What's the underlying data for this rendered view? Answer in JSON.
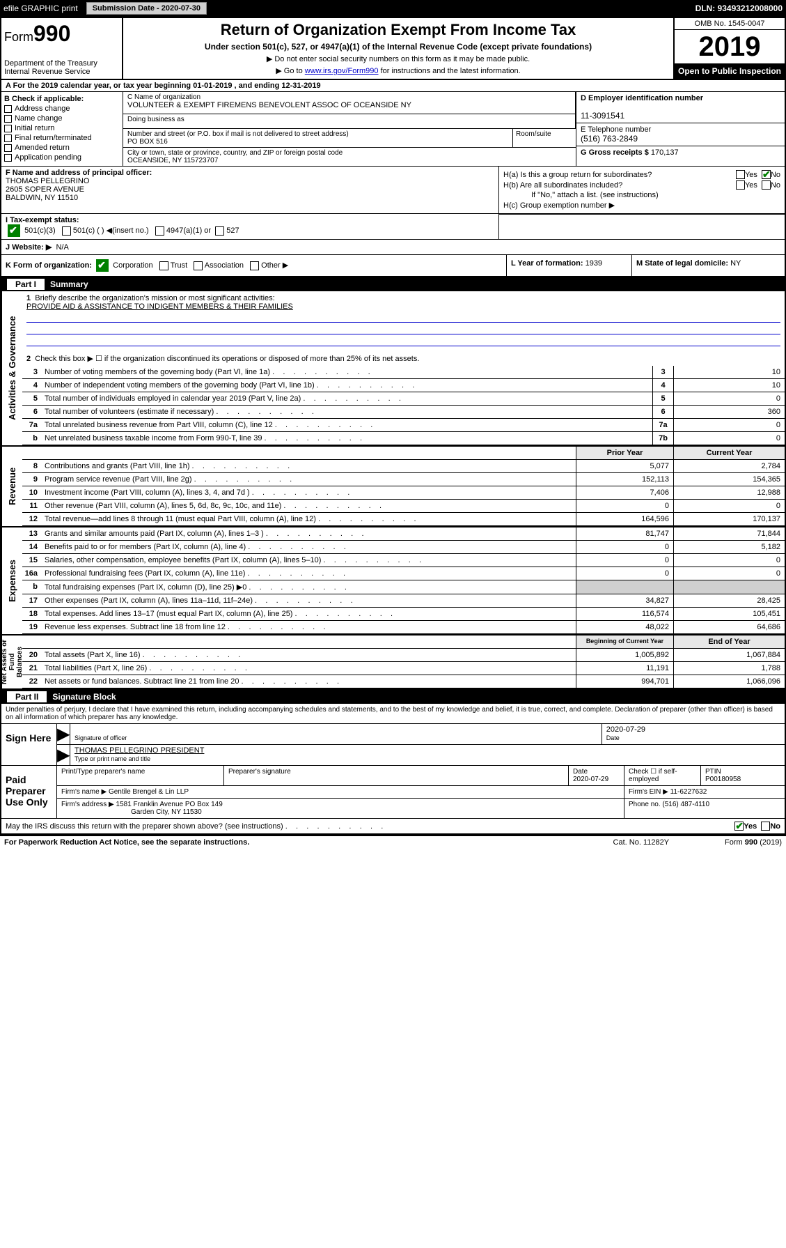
{
  "topbar": {
    "efile": "efile GRAPHIC print",
    "subdate_lbl": "Submission Date - 2020-07-30",
    "dln": "DLN: 93493212008000"
  },
  "header": {
    "form_label": "Form",
    "form_num": "990",
    "dept": "Department of the Treasury",
    "irs": "Internal Revenue Service",
    "title": "Return of Organization Exempt From Income Tax",
    "sub1": "Under section 501(c), 527, or 4947(a)(1) of the Internal Revenue Code (except private foundations)",
    "sub2": "▶ Do not enter social security numbers on this form as it may be made public.",
    "sub3a": "▶ Go to ",
    "sub3_link": "www.irs.gov/Form990",
    "sub3b": " for instructions and the latest information.",
    "omb": "OMB No. 1545-0047",
    "year": "2019",
    "open": "Open to Public Inspection"
  },
  "rowA": "A For the 2019 calendar year, or tax year beginning 01-01-2019    , and ending 12-31-2019",
  "blockB": {
    "hdr": "B Check if applicable:",
    "items": [
      "Address change",
      "Name change",
      "Initial return",
      "Final return/terminated",
      "Amended return",
      "Application pending"
    ]
  },
  "blockC": {
    "name_lbl": "C Name of organization",
    "name": "VOLUNTEER & EXEMPT FIREMENS BENEVOLENT ASSOC OF OCEANSIDE NY",
    "dba_lbl": "Doing business as",
    "addr_lbl": "Number and street (or P.O. box if mail is not delivered to street address)",
    "addr": "PO BOX 516",
    "suite_lbl": "Room/suite",
    "city_lbl": "City or town, state or province, country, and ZIP or foreign postal code",
    "city": "OCEANSIDE, NY  115723707"
  },
  "blockD": {
    "lbl": "D Employer identification number",
    "val": "11-3091541"
  },
  "blockE": {
    "lbl": "E Telephone number",
    "val": "(516) 763-2849"
  },
  "blockG": {
    "lbl": "G Gross receipts $",
    "val": "170,137"
  },
  "blockF": {
    "lbl": "F  Name and address of principal officer:",
    "name": "THOMAS PELLEGRINO",
    "addr1": "2605 SOPER AVENUE",
    "addr2": "BALDWIN, NY  11510"
  },
  "blockH": {
    "a": "H(a)  Is this a group return for subordinates?",
    "b": "H(b)  Are all subordinates included?",
    "b2": "If \"No,\" attach a list. (see instructions)",
    "c": "H(c)  Group exemption number ▶"
  },
  "rowI": {
    "lbl": "I   Tax-exempt status:",
    "opt1": "501(c)(3)",
    "opt2": "501(c) (  ) ◀(insert no.)",
    "opt3": "4947(a)(1) or",
    "opt4": "527"
  },
  "rowJ": {
    "lbl": "J   Website: ▶",
    "val": "N/A"
  },
  "rowK": {
    "lbl": "K Form of organization:",
    "opts": [
      "Corporation",
      "Trust",
      "Association",
      "Other ▶"
    ],
    "L_lbl": "L Year of formation:",
    "L_val": "1939",
    "M_lbl": "M State of legal domicile:",
    "M_val": "NY"
  },
  "part1": {
    "hdr": "Part I",
    "title": "Summary",
    "q1": "Briefly describe the organization's mission or most significant activities:",
    "q1_ans": "PROVIDE AID & ASSISTANCE TO INDIGENT MEMBERS & THEIR FAMILIES",
    "q2": "Check this box ▶ ☐  if the organization discontinued its operations or disposed of more than 25% of its net assets.",
    "lines_gov": [
      {
        "n": "3",
        "d": "Number of voting members of the governing body (Part VI, line 1a)",
        "box": "3",
        "v": "10"
      },
      {
        "n": "4",
        "d": "Number of independent voting members of the governing body (Part VI, line 1b)",
        "box": "4",
        "v": "10"
      },
      {
        "n": "5",
        "d": "Total number of individuals employed in calendar year 2019 (Part V, line 2a)",
        "box": "5",
        "v": "0"
      },
      {
        "n": "6",
        "d": "Total number of volunteers (estimate if necessary)",
        "box": "6",
        "v": "360"
      },
      {
        "n": "7a",
        "d": "Total unrelated business revenue from Part VIII, column (C), line 12",
        "box": "7a",
        "v": "0"
      },
      {
        "n": "b",
        "d": "Net unrelated business taxable income from Form 990-T, line 39",
        "box": "7b",
        "v": "0"
      }
    ],
    "col_prior": "Prior Year",
    "col_curr": "Current Year",
    "col_begin": "Beginning of Current Year",
    "col_end": "End of Year",
    "lines_rev": [
      {
        "n": "8",
        "d": "Contributions and grants (Part VIII, line 1h)",
        "p": "5,077",
        "c": "2,784"
      },
      {
        "n": "9",
        "d": "Program service revenue (Part VIII, line 2g)",
        "p": "152,113",
        "c": "154,365"
      },
      {
        "n": "10",
        "d": "Investment income (Part VIII, column (A), lines 3, 4, and 7d )",
        "p": "7,406",
        "c": "12,988"
      },
      {
        "n": "11",
        "d": "Other revenue (Part VIII, column (A), lines 5, 6d, 8c, 9c, 10c, and 11e)",
        "p": "0",
        "c": "0"
      },
      {
        "n": "12",
        "d": "Total revenue—add lines 8 through 11 (must equal Part VIII, column (A), line 12)",
        "p": "164,596",
        "c": "170,137"
      }
    ],
    "lines_exp": [
      {
        "n": "13",
        "d": "Grants and similar amounts paid (Part IX, column (A), lines 1–3 )",
        "p": "81,747",
        "c": "71,844"
      },
      {
        "n": "14",
        "d": "Benefits paid to or for members (Part IX, column (A), line 4)",
        "p": "0",
        "c": "5,182"
      },
      {
        "n": "15",
        "d": "Salaries, other compensation, employee benefits (Part IX, column (A), lines 5–10)",
        "p": "0",
        "c": "0"
      },
      {
        "n": "16a",
        "d": "Professional fundraising fees (Part IX, column (A), line 11e)",
        "p": "0",
        "c": "0"
      },
      {
        "n": "b",
        "d": "Total fundraising expenses (Part IX, column (D), line 25) ▶0",
        "p": "",
        "c": "",
        "shade": true
      },
      {
        "n": "17",
        "d": "Other expenses (Part IX, column (A), lines 11a–11d, 11f–24e)",
        "p": "34,827",
        "c": "28,425"
      },
      {
        "n": "18",
        "d": "Total expenses. Add lines 13–17 (must equal Part IX, column (A), line 25)",
        "p": "116,574",
        "c": "105,451"
      },
      {
        "n": "19",
        "d": "Revenue less expenses. Subtract line 18 from line 12",
        "p": "48,022",
        "c": "64,686"
      }
    ],
    "lines_net": [
      {
        "n": "20",
        "d": "Total assets (Part X, line 16)",
        "p": "1,005,892",
        "c": "1,067,884"
      },
      {
        "n": "21",
        "d": "Total liabilities (Part X, line 26)",
        "p": "11,191",
        "c": "1,788"
      },
      {
        "n": "22",
        "d": "Net assets or fund balances. Subtract line 21 from line 20",
        "p": "994,701",
        "c": "1,066,096"
      }
    ],
    "side_gov": "Activities & Governance",
    "side_rev": "Revenue",
    "side_exp": "Expenses",
    "side_net": "Net Assets or Fund Balances"
  },
  "part2": {
    "hdr": "Part II",
    "title": "Signature Block",
    "perjury": "Under penalties of perjury, I declare that I have examined this return, including accompanying schedules and statements, and to the best of my knowledge and belief, it is true, correct, and complete. Declaration of preparer (other than officer) is based on all information of which preparer has any knowledge.",
    "sign_here": "Sign Here",
    "sig_officer_lbl": "Signature of officer",
    "sig_date": "2020-07-29",
    "sig_date_lbl": "Date",
    "officer_name": "THOMAS PELLEGRINO  PRESIDENT",
    "officer_name_lbl": "Type or print name and title",
    "paid": "Paid Preparer Use Only",
    "prep_name_lbl": "Print/Type preparer's name",
    "prep_sig_lbl": "Preparer's signature",
    "prep_date_lbl": "Date",
    "prep_date": "2020-07-29",
    "prep_check_lbl": "Check ☐ if self-employed",
    "ptin_lbl": "PTIN",
    "ptin": "P00180958",
    "firm_name_lbl": "Firm's name     ▶",
    "firm_name": "Gentile Brengel & Lin LLP",
    "firm_ein_lbl": "Firm's EIN ▶",
    "firm_ein": "11-6227632",
    "firm_addr_lbl": "Firm's address ▶",
    "firm_addr1": "1581 Franklin Avenue PO Box 149",
    "firm_addr2": "Garden City, NY  11530",
    "phone_lbl": "Phone no.",
    "phone": "(516) 487-4110",
    "discuss": "May the IRS discuss this return with the preparer shown above? (see instructions)",
    "yes": "Yes",
    "no": "No"
  },
  "footer": {
    "pra": "For Paperwork Reduction Act Notice, see the separate instructions.",
    "cat": "Cat. No. 11282Y",
    "form": "Form 990 (2019)"
  }
}
